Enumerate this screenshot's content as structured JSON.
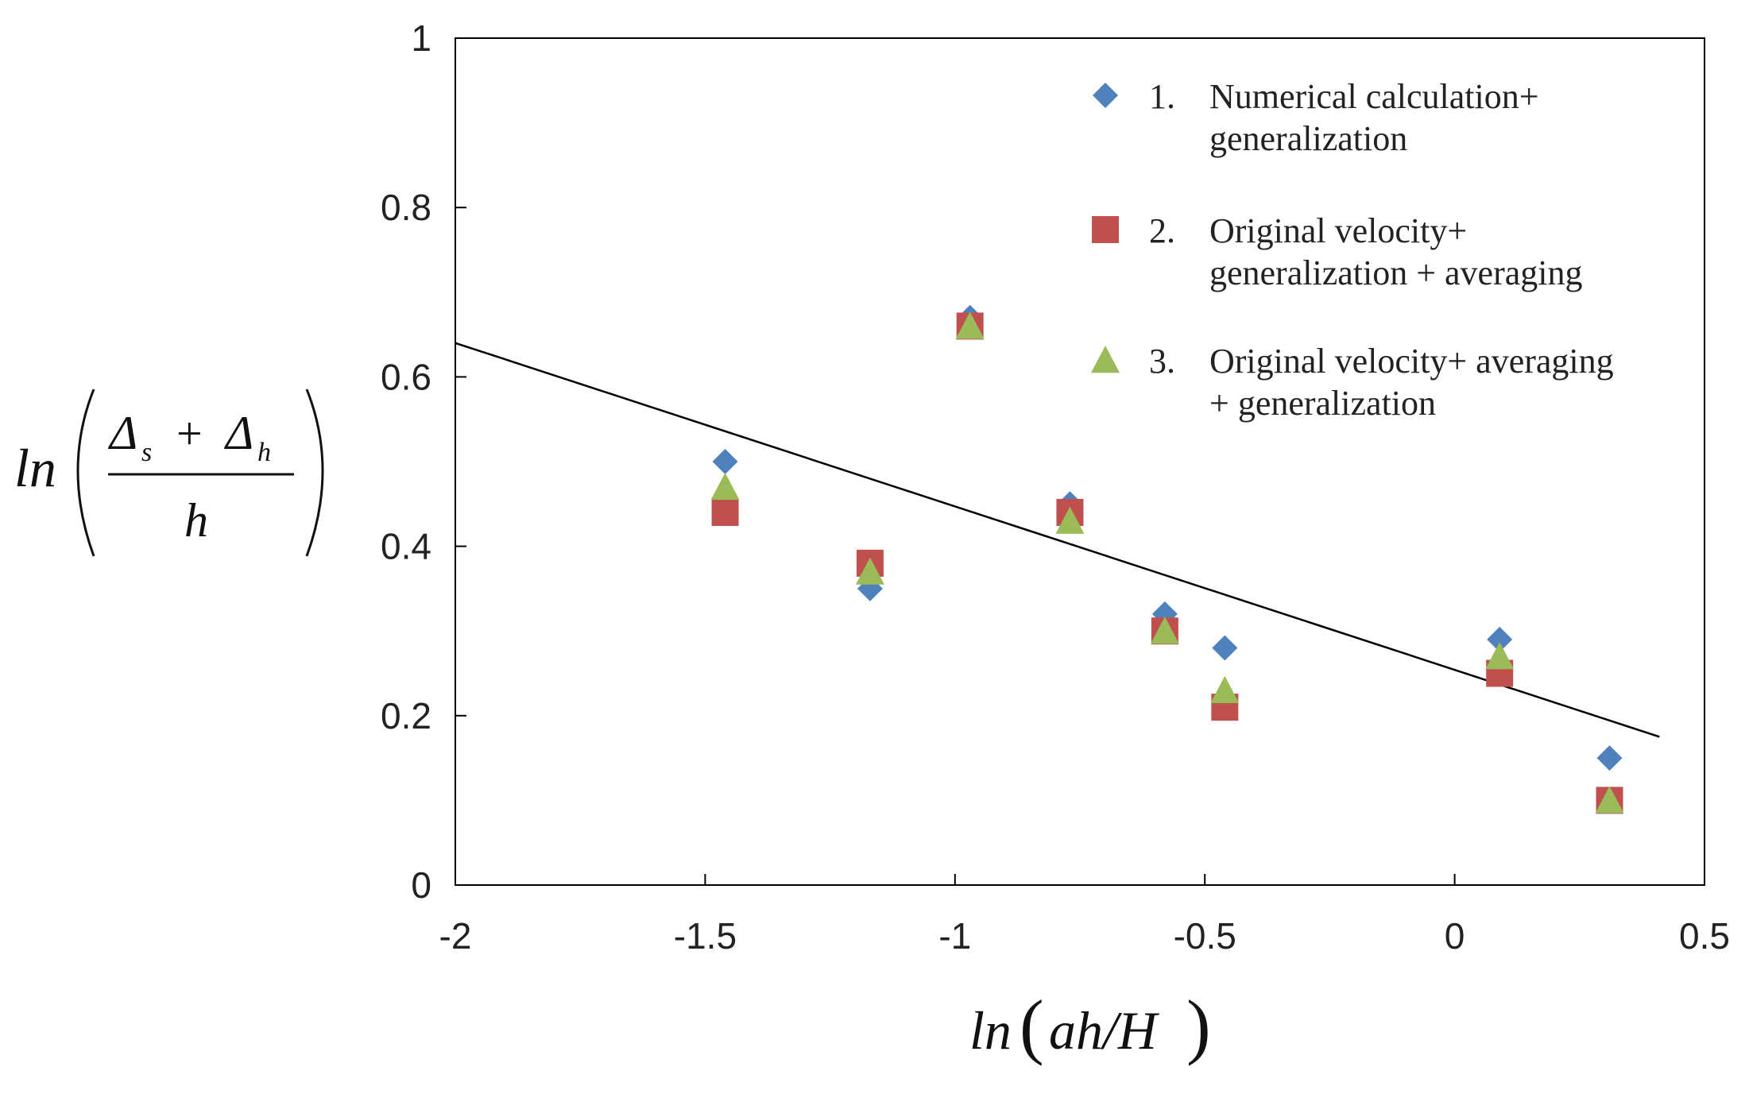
{
  "chart_data": {
    "type": "scatter",
    "title": "",
    "xlabel": "ln(ah/H)",
    "ylabel": "ln((Δs + Δh)/h)",
    "xlabel_parts": {
      "fn": "ln",
      "open": "(",
      "arg": "ah/H",
      "close": ")"
    },
    "ylabel_parts": {
      "fn": "ln",
      "num_a": "Δ",
      "num_a_sub": "s",
      "plus": "+",
      "num_b": "Δ",
      "num_b_sub": "h",
      "den": "h"
    },
    "xlim": [
      -2,
      0.5
    ],
    "ylim": [
      0,
      1
    ],
    "x_ticks": [
      -2,
      -1.5,
      -1,
      -0.5,
      0,
      0.5
    ],
    "x_tick_labels": [
      "-2",
      "-1.5",
      "-1",
      "-0.5",
      "0",
      "0.5"
    ],
    "y_ticks": [
      0,
      0.2,
      0.4,
      0.6,
      0.8,
      1
    ],
    "y_tick_labels": [
      "0",
      "0.2",
      "0.4",
      "0.6",
      "0.8",
      "1"
    ],
    "grid": false,
    "legend_position": "top-right",
    "series": [
      {
        "name": "Numerical calculation+ generalization",
        "legend_number": "1.",
        "legend_lines": [
          "Numerical calculation+",
          "generalization"
        ],
        "marker": "diamond",
        "color": "#4f81bd",
        "x": [
          -1.46,
          -1.17,
          -0.97,
          -0.77,
          -0.58,
          -0.46,
          0.09,
          0.31
        ],
        "y": [
          0.5,
          0.35,
          0.67,
          0.45,
          0.32,
          0.28,
          0.29,
          0.15
        ]
      },
      {
        "name": "Original velocity+ generalization + averaging",
        "legend_number": "2.",
        "legend_lines": [
          "Original velocity+",
          "generalization + averaging"
        ],
        "marker": "square",
        "color": "#c0504d",
        "x": [
          -1.46,
          -1.17,
          -0.97,
          -0.77,
          -0.58,
          -0.46,
          0.09,
          0.31
        ],
        "y": [
          0.44,
          0.38,
          0.66,
          0.44,
          0.3,
          0.21,
          0.25,
          0.1
        ]
      },
      {
        "name": "Original velocity+ averaging + generalization",
        "legend_number": "3.",
        "legend_lines": [
          "Original velocity+ averaging",
          "+ generalization"
        ],
        "marker": "triangle",
        "color": "#9bbb59",
        "x": [
          -1.46,
          -1.17,
          -0.97,
          -0.77,
          -0.58,
          -0.46,
          0.09,
          0.31
        ],
        "y": [
          0.47,
          0.37,
          0.66,
          0.43,
          0.3,
          0.23,
          0.27,
          0.1
        ]
      }
    ],
    "trendline": {
      "name": "fit-line",
      "color": "#000000",
      "x": [
        -2,
        0.41
      ],
      "y": [
        0.64,
        0.175
      ]
    }
  }
}
